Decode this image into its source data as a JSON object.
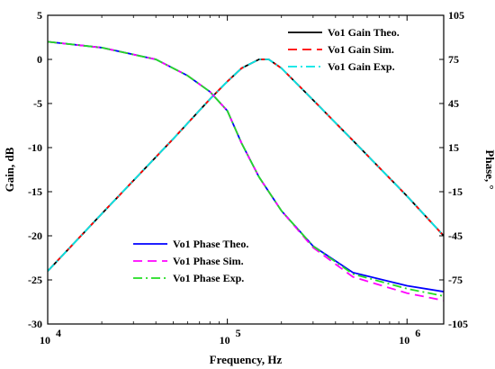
{
  "chart_data": {
    "type": "line",
    "xlabel": "Frequency, Hz",
    "ylabel": "Gain, dB",
    "y2label": "Phase, °",
    "xscale": "log",
    "xlim": [
      10000,
      1600000
    ],
    "ylim": [
      -30,
      5
    ],
    "y2lim": [
      -105,
      105
    ],
    "x_tick_labels": [
      {
        "base": "10",
        "exp": "4"
      },
      {
        "base": "10",
        "exp": "5"
      },
      {
        "base": "10",
        "exp": "6"
      }
    ],
    "y_ticks": [
      5,
      0,
      -5,
      -10,
      -15,
      -20,
      -25,
      -30
    ],
    "y_tick_labels": [
      "5",
      "0",
      "-5",
      "-10",
      "-15",
      "-20",
      "-25",
      "-30"
    ],
    "y2_ticks": [
      105,
      75,
      45,
      15,
      -15,
      -45,
      -75,
      -105
    ],
    "y2_tick_labels": [
      "105",
      "75",
      "45",
      "15",
      "-15",
      "-45",
      "-75",
      "-105"
    ],
    "grid": false,
    "legend_gain_position": "top-right",
    "legend_phase_position": "bottom-center",
    "series": [
      {
        "name": "Vo1 Gain Theo.",
        "axis": "left",
        "color": "#000000",
        "dash": "solid",
        "x": [
          10000,
          20000,
          50000,
          80000,
          100000,
          120000,
          150000,
          170000,
          200000,
          300000,
          500000,
          1000000,
          1600000
        ],
        "y": [
          -24,
          -17.5,
          -9,
          -4.5,
          -2.5,
          -1,
          0,
          0,
          -1,
          -4.6,
          -9.2,
          -15.5,
          -20
        ]
      },
      {
        "name": "Vo1 Gain Sim.",
        "axis": "left",
        "color": "#ff0000",
        "dash": "10,6",
        "x": [
          10000,
          20000,
          50000,
          80000,
          100000,
          120000,
          150000,
          170000,
          200000,
          300000,
          500000,
          1000000,
          1600000
        ],
        "y": [
          -24,
          -17.5,
          -9,
          -4.5,
          -2.5,
          -1,
          0,
          0,
          -1,
          -4.6,
          -9.2,
          -15.5,
          -20
        ]
      },
      {
        "name": "Vo1 Gain Exp.",
        "axis": "left",
        "color": "#00e5e5",
        "dash": "10,4,2,4",
        "x": [
          10000,
          20000,
          50000,
          80000,
          100000,
          120000,
          150000,
          170000,
          200000,
          300000,
          500000,
          1000000,
          1600000
        ],
        "y": [
          -24,
          -17.5,
          -9,
          -4.5,
          -2.5,
          -1,
          0,
          0,
          -1,
          -4.6,
          -9.2,
          -15.5,
          -20
        ]
      },
      {
        "name": "Vo1 Phase Theo.",
        "axis": "right",
        "color": "#0000ff",
        "dash": "solid",
        "x": [
          10000,
          20000,
          40000,
          60000,
          80000,
          100000,
          120000,
          150000,
          200000,
          300000,
          500000,
          1000000,
          1600000
        ],
        "y": [
          87,
          83,
          75,
          64,
          53,
          40,
          18,
          -5,
          -28,
          -52,
          -70,
          -79,
          -83
        ]
      },
      {
        "name": "Vo1 Phase Sim.",
        "axis": "right",
        "color": "#ff00ff",
        "dash": "10,6",
        "x": [
          10000,
          20000,
          40000,
          60000,
          80000,
          100000,
          120000,
          150000,
          200000,
          300000,
          500000,
          1000000,
          1600000
        ],
        "y": [
          87,
          83,
          75,
          64,
          53,
          40,
          18,
          -5,
          -28,
          -53,
          -73,
          -84,
          -89
        ]
      },
      {
        "name": "Vo1 Phase Exp.",
        "axis": "right",
        "color": "#22dd22",
        "dash": "10,4,2,4",
        "x": [
          10000,
          20000,
          40000,
          60000,
          80000,
          100000,
          120000,
          150000,
          200000,
          300000,
          500000,
          1000000,
          1600000
        ],
        "y": [
          87,
          83,
          75,
          64,
          53,
          40,
          18,
          -5,
          -28,
          -52,
          -71,
          -81,
          -86
        ]
      }
    ]
  }
}
